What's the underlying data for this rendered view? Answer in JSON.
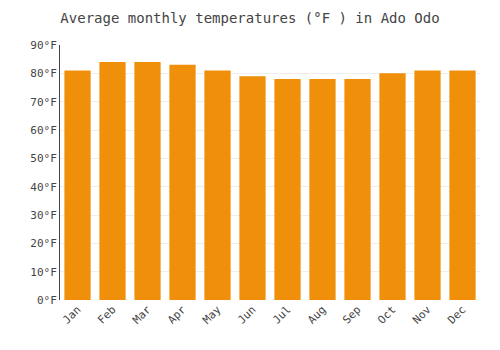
{
  "chart_data": {
    "type": "bar",
    "title": "Average monthly temperatures (°F ) in Ado Odo",
    "categories": [
      "Jan",
      "Feb",
      "Mar",
      "Apr",
      "May",
      "Jun",
      "Jul",
      "Aug",
      "Sep",
      "Oct",
      "Nov",
      "Dec"
    ],
    "values": [
      81,
      84,
      84,
      83,
      81,
      79,
      78,
      78,
      78,
      80,
      81,
      81
    ],
    "color": "#F0900A",
    "ylim": [
      0,
      90
    ],
    "yticks": [
      {
        "value": 0,
        "label": "0°F"
      },
      {
        "value": 10,
        "label": "10°F"
      },
      {
        "value": 20,
        "label": "20°F"
      },
      {
        "value": 30,
        "label": "30°F"
      },
      {
        "value": 40,
        "label": "40°F"
      },
      {
        "value": 50,
        "label": "50°F"
      },
      {
        "value": 60,
        "label": "60°F"
      },
      {
        "value": 70,
        "label": "70°F"
      },
      {
        "value": 80,
        "label": "80°F"
      },
      {
        "value": 90,
        "label": "90°F"
      }
    ],
    "grid": true
  }
}
